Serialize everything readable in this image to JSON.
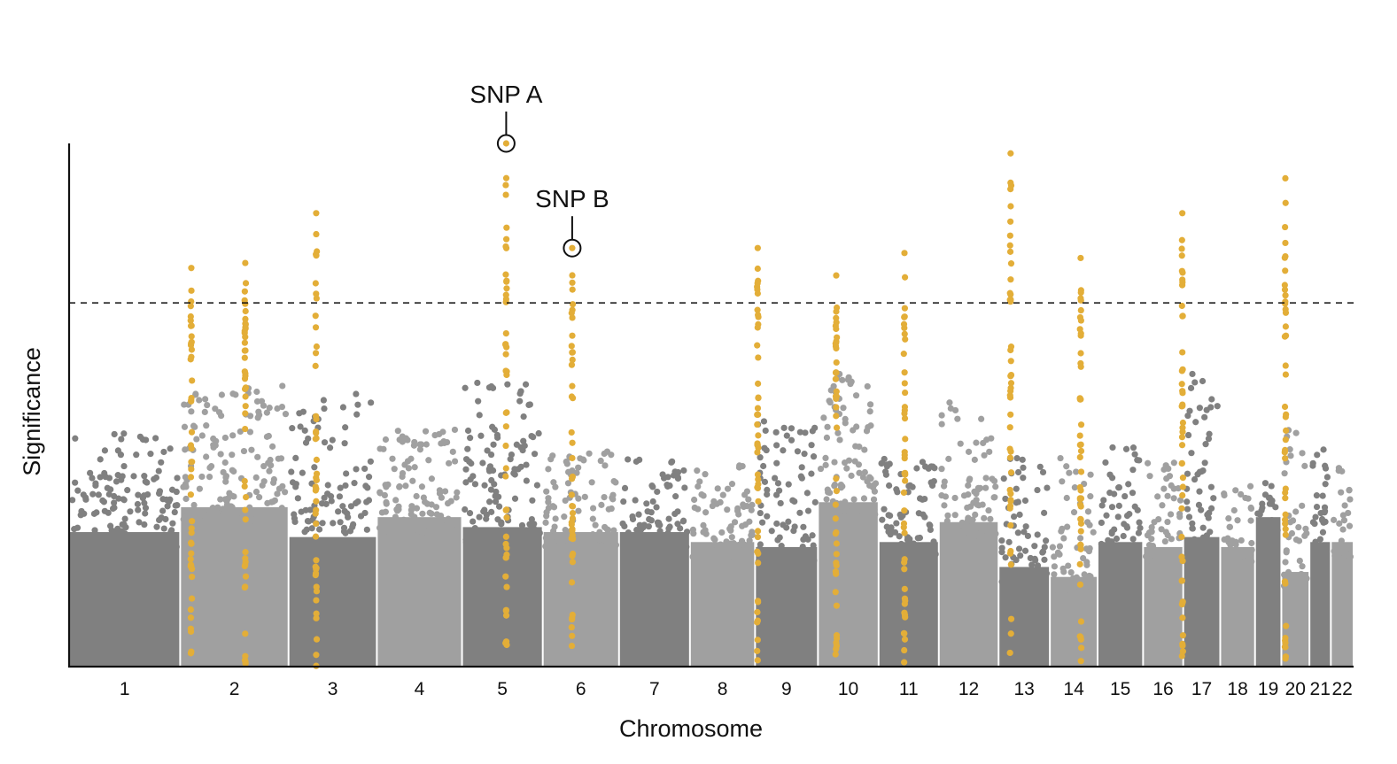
{
  "chart_data": {
    "type": "scatter",
    "subtype": "manhattan",
    "title": "",
    "xlabel": "Chromosome",
    "ylabel": "Significance",
    "ylim": [
      0,
      10.5
    ],
    "y_tick_labels_shown": false,
    "grid": false,
    "legend": "none",
    "threshold": {
      "value": 7.3,
      "style": "dashed",
      "color": "#111111"
    },
    "colors": {
      "dark": "#808080",
      "light": "#a0a0a0",
      "hit": "#e3ae38",
      "axis": "#111111"
    },
    "chromosomes": [
      {
        "label": "1",
        "length_mb": 249,
        "bulk": 2.7,
        "max": 4.7
      },
      {
        "label": "2",
        "length_mb": 243,
        "bulk": 3.2,
        "max": 5.7
      },
      {
        "label": "3",
        "length_mb": 198,
        "bulk": 2.6,
        "max": 5.5
      },
      {
        "label": "4",
        "length_mb": 191,
        "bulk": 3.0,
        "max": 4.9
      },
      {
        "label": "5",
        "length_mb": 181,
        "bulk": 2.8,
        "max": 5.7
      },
      {
        "label": "6",
        "length_mb": 171,
        "bulk": 2.7,
        "max": 4.4
      },
      {
        "label": "7",
        "length_mb": 159,
        "bulk": 2.7,
        "max": 4.2
      },
      {
        "label": "8",
        "length_mb": 146,
        "bulk": 2.5,
        "max": 4.1
      },
      {
        "label": "9",
        "length_mb": 141,
        "bulk": 2.4,
        "max": 5.0
      },
      {
        "label": "10",
        "length_mb": 136,
        "bulk": 3.3,
        "max": 5.9
      },
      {
        "label": "11",
        "length_mb": 135,
        "bulk": 2.5,
        "max": 4.2
      },
      {
        "label": "12",
        "length_mb": 134,
        "bulk": 2.9,
        "max": 5.3
      },
      {
        "label": "13",
        "length_mb": 115,
        "bulk": 2.0,
        "max": 4.3
      },
      {
        "label": "14",
        "length_mb": 107,
        "bulk": 1.8,
        "max": 4.2
      },
      {
        "label": "15",
        "length_mb": 102,
        "bulk": 2.5,
        "max": 4.6
      },
      {
        "label": "16",
        "length_mb": 90,
        "bulk": 2.4,
        "max": 4.1
      },
      {
        "label": "17",
        "length_mb": 83,
        "bulk": 2.6,
        "max": 5.9
      },
      {
        "label": "18",
        "length_mb": 78,
        "bulk": 2.4,
        "max": 3.7
      },
      {
        "label": "19",
        "length_mb": 59,
        "bulk": 3.0,
        "max": 3.8
      },
      {
        "label": "20",
        "length_mb": 63,
        "bulk": 1.9,
        "max": 4.8
      },
      {
        "label": "21",
        "length_mb": 48,
        "bulk": 2.5,
        "max": 4.4
      },
      {
        "label": "22",
        "length_mb": 51,
        "bulk": 2.5,
        "max": 4.1
      }
    ],
    "hits": [
      {
        "chromosome": "2",
        "position_mb": 25,
        "peak": 8.0
      },
      {
        "chromosome": "2",
        "position_mb": 146,
        "peak": 8.1
      },
      {
        "chromosome": "3",
        "position_mb": 62,
        "peak": 9.1
      },
      {
        "chromosome": "5",
        "position_mb": 99,
        "peak": 10.5,
        "annotation": "SNP A"
      },
      {
        "chromosome": "6",
        "position_mb": 66,
        "peak": 8.4,
        "annotation": "SNP B"
      },
      {
        "chromosome": "9",
        "position_mb": 6,
        "peak": 8.4
      },
      {
        "chromosome": "10",
        "position_mb": 41,
        "peak": 7.85
      },
      {
        "chromosome": "11",
        "position_mb": 58,
        "peak": 8.3
      },
      {
        "chromosome": "13",
        "position_mb": 27,
        "peak": 10.3
      },
      {
        "chromosome": "14",
        "position_mb": 69,
        "peak": 8.2
      },
      {
        "chromosome": "16",
        "position_mb": 88,
        "peak": 9.1
      },
      {
        "chromosome": "20",
        "position_mb": 9,
        "peak": 9.8
      }
    ]
  }
}
